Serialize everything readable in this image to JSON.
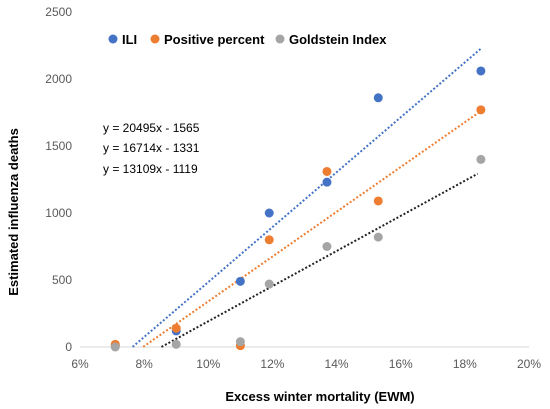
{
  "chart_data": {
    "type": "scatter",
    "title": "",
    "xlabel": "Excess winter mortality (EWM)",
    "ylabel": "Estimated influenza deaths",
    "xlim": [
      0.06,
      0.2
    ],
    "ylim": [
      0,
      2500
    ],
    "x_ticks": [
      0.06,
      0.08,
      0.1,
      0.12,
      0.14,
      0.16,
      0.18,
      0.2
    ],
    "x_tick_labels": [
      "6%",
      "8%",
      "10%",
      "12%",
      "14%",
      "16%",
      "18%",
      "20%"
    ],
    "y_ticks": [
      0,
      500,
      1000,
      1500,
      2000,
      2500
    ],
    "y_tick_labels": [
      "0",
      "500",
      "1000",
      "1500",
      "2000",
      "2500"
    ],
    "grid": false,
    "legend_position": "top",
    "series": [
      {
        "name": "ILI",
        "color": "#4472C4",
        "trendline_color": "#4472C4",
        "trendline": {
          "slope": 20495,
          "intercept": -1565,
          "x_range": [
            0.0764,
            0.185
          ]
        },
        "points": [
          {
            "x": 0.071,
            "y": 10
          },
          {
            "x": 0.09,
            "y": 120
          },
          {
            "x": 0.11,
            "y": 490
          },
          {
            "x": 0.119,
            "y": 1000
          },
          {
            "x": 0.137,
            "y": 1230
          },
          {
            "x": 0.153,
            "y": 1860
          },
          {
            "x": 0.185,
            "y": 2060
          }
        ]
      },
      {
        "name": "Positive percent",
        "color": "#ED7D31",
        "trendline_color": "#ED7D31",
        "trendline": {
          "slope": 16714,
          "intercept": -1331,
          "x_range": [
            0.0797,
            0.185
          ]
        },
        "points": [
          {
            "x": 0.071,
            "y": 20
          },
          {
            "x": 0.09,
            "y": 140
          },
          {
            "x": 0.11,
            "y": 10
          },
          {
            "x": 0.119,
            "y": 800
          },
          {
            "x": 0.137,
            "y": 1310
          },
          {
            "x": 0.153,
            "y": 1090
          },
          {
            "x": 0.185,
            "y": 1770
          }
        ]
      },
      {
        "name": "Goldstein Index",
        "color": "#A5A5A5",
        "trendline_color": "#222222",
        "trendline": {
          "slope": 13109,
          "intercept": -1119,
          "x_range": [
            0.0854,
            0.184
          ]
        },
        "points": [
          {
            "x": 0.071,
            "y": 0
          },
          {
            "x": 0.09,
            "y": 20
          },
          {
            "x": 0.11,
            "y": 40
          },
          {
            "x": 0.119,
            "y": 470
          },
          {
            "x": 0.137,
            "y": 750
          },
          {
            "x": 0.153,
            "y": 820
          },
          {
            "x": 0.185,
            "y": 1400
          }
        ]
      }
    ],
    "equations": [
      "y = 20495x - 1565",
      "y = 16714x - 1331",
      "y = 13109x - 1119"
    ]
  }
}
